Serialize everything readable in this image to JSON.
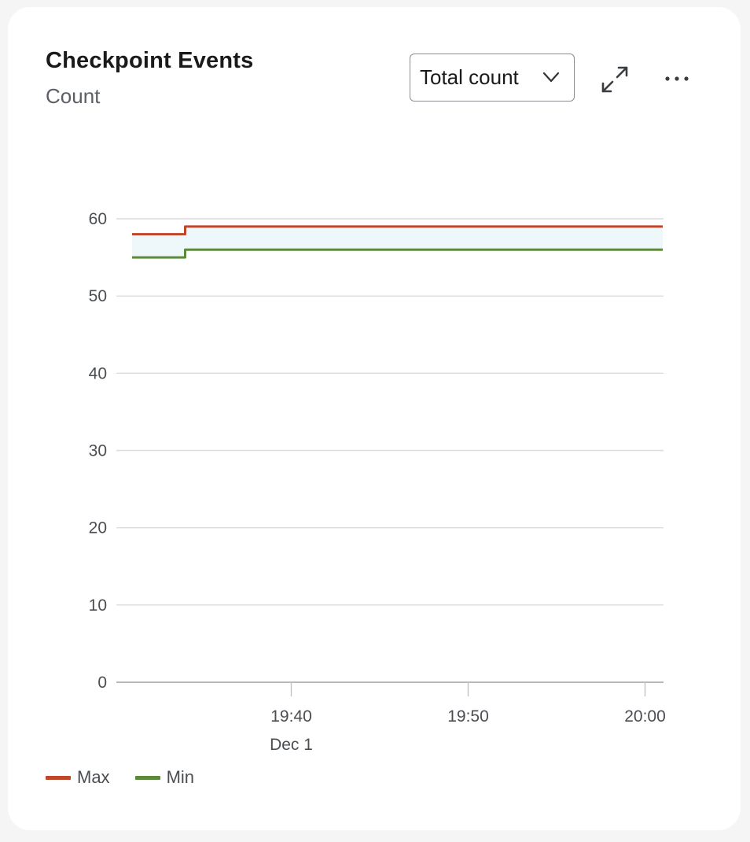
{
  "card": {
    "title": "Checkpoint Events",
    "subtitle": "Count"
  },
  "controls": {
    "aggregation_label": "Total count",
    "icons": [
      "chevron-down-icon",
      "expand-icon",
      "more-icon"
    ]
  },
  "colors": {
    "max": "#c0462a",
    "min": "#5b8a3a",
    "band": "#eef8fa",
    "grid": "#dcdcdc"
  },
  "chart_data": {
    "type": "line",
    "title": "Checkpoint Events",
    "ylabel": "Count",
    "xlabel": "",
    "ylim": [
      0,
      60
    ],
    "y_ticks": [
      "0",
      "10",
      "20",
      "30",
      "40",
      "50",
      "60"
    ],
    "x_ticks": [
      "19:40",
      "19:50",
      "20:00"
    ],
    "x_sublabel": "Dec 1",
    "xlim": [
      "19:31",
      "20:01"
    ],
    "grid": true,
    "legend_position": "bottom-left",
    "series": [
      {
        "name": "Max",
        "color": "#c0462a",
        "interpolation": "step",
        "points": [
          [
            "19:31",
            58
          ],
          [
            "19:34",
            59
          ],
          [
            "20:01",
            59
          ]
        ]
      },
      {
        "name": "Min",
        "color": "#5b8a3a",
        "interpolation": "step",
        "points": [
          [
            "19:31",
            55
          ],
          [
            "19:34",
            56
          ],
          [
            "20:01",
            56
          ]
        ]
      }
    ],
    "band_between": [
      "Max",
      "Min"
    ]
  }
}
